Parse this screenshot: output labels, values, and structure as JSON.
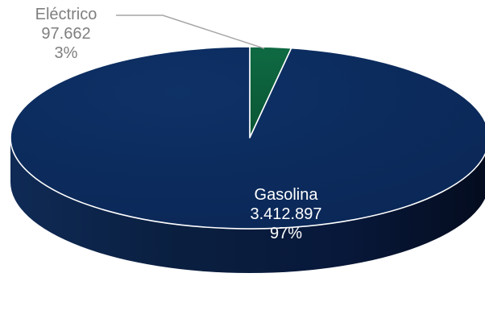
{
  "chart_data": {
    "type": "pie",
    "style": "3d",
    "slices": [
      {
        "name": "Eléctrico",
        "value": 97662,
        "value_label": "97.662",
        "percent": 3,
        "percent_label": "3%",
        "color": "#0b5e3a",
        "label_color": "#7f7f7f",
        "label_placement": "outside"
      },
      {
        "name": "Gasolina",
        "value": 3412897,
        "value_label": "3.412.897",
        "percent": 97,
        "percent_label": "97%",
        "color": "#0b2a5c",
        "label_color": "#ffffff",
        "label_placement": "inside"
      }
    ],
    "legend": "none"
  }
}
